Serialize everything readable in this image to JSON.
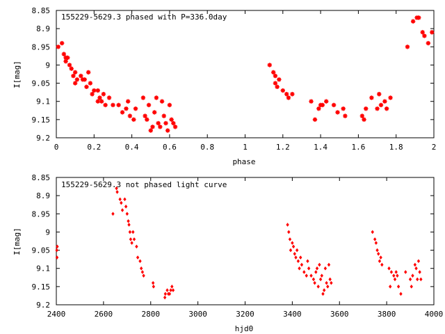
{
  "chart_data": [
    {
      "type": "scatter",
      "title": "155229-5629.3 phased with P=336.0day",
      "xlabel": "phase",
      "ylabel": "I[mag]",
      "xlim": [
        0,
        2
      ],
      "ylim": [
        9.2,
        8.85
      ],
      "y_inverted": true,
      "grid": false,
      "x_ticks": [
        "0",
        "0.2",
        "0.4",
        "0.6",
        "0.8",
        "1",
        "1.2",
        "1.4",
        "1.6",
        "1.8",
        "2"
      ],
      "x_tick_values": [
        0,
        0.2,
        0.4,
        0.6,
        0.8,
        1,
        1.2,
        1.4,
        1.6,
        1.8,
        2
      ],
      "y_ticks": [
        "8.85",
        "8.9",
        "8.95",
        "9",
        "9.05",
        "9.1",
        "9.15",
        "9.2"
      ],
      "y_tick_values": [
        8.85,
        8.9,
        8.95,
        9.0,
        9.05,
        9.1,
        9.15,
        9.2
      ],
      "marker": "star",
      "color": "#ff0000",
      "points": [
        [
          0.01,
          8.95
        ],
        [
          0.03,
          8.94
        ],
        [
          0.04,
          8.97
        ],
        [
          0.05,
          8.98
        ],
        [
          0.06,
          8.98
        ],
        [
          0.05,
          8.99
        ],
        [
          0.07,
          9.0
        ],
        [
          0.08,
          9.01
        ],
        [
          0.09,
          9.03
        ],
        [
          0.1,
          9.02
        ],
        [
          0.11,
          9.04
        ],
        [
          0.1,
          9.05
        ],
        [
          0.13,
          9.03
        ],
        [
          0.14,
          9.04
        ],
        [
          0.15,
          9.04
        ],
        [
          0.16,
          9.06
        ],
        [
          0.17,
          9.02
        ],
        [
          0.18,
          9.05
        ],
        [
          0.19,
          9.08
        ],
        [
          0.2,
          9.07
        ],
        [
          0.22,
          9.07
        ],
        [
          0.23,
          9.09
        ],
        [
          0.24,
          9.1
        ],
        [
          0.22,
          9.1
        ],
        [
          0.25,
          9.08
        ],
        [
          0.26,
          9.11
        ],
        [
          0.28,
          9.09
        ],
        [
          0.3,
          9.11
        ],
        [
          0.33,
          9.11
        ],
        [
          0.35,
          9.13
        ],
        [
          0.37,
          9.12
        ],
        [
          0.38,
          9.1
        ],
        [
          0.39,
          9.14
        ],
        [
          0.41,
          9.15
        ],
        [
          0.42,
          9.12
        ],
        [
          0.46,
          9.09
        ],
        [
          0.47,
          9.14
        ],
        [
          0.48,
          9.15
        ],
        [
          0.49,
          9.11
        ],
        [
          0.5,
          9.18
        ],
        [
          0.51,
          9.17
        ],
        [
          0.52,
          9.13
        ],
        [
          0.53,
          9.09
        ],
        [
          0.54,
          9.16
        ],
        [
          0.55,
          9.17
        ],
        [
          0.56,
          9.1
        ],
        [
          0.57,
          9.14
        ],
        [
          0.58,
          9.16
        ],
        [
          0.59,
          9.18
        ],
        [
          0.6,
          9.11
        ],
        [
          0.61,
          9.15
        ],
        [
          0.62,
          9.16
        ],
        [
          0.63,
          9.17
        ],
        [
          1.13,
          9.0
        ],
        [
          1.15,
          9.02
        ],
        [
          1.16,
          9.03
        ],
        [
          1.16,
          9.05
        ],
        [
          1.17,
          9.06
        ],
        [
          1.18,
          9.04
        ],
        [
          1.2,
          9.07
        ],
        [
          1.22,
          9.08
        ],
        [
          1.23,
          9.09
        ],
        [
          1.25,
          9.08
        ],
        [
          1.35,
          9.1
        ],
        [
          1.37,
          9.15
        ],
        [
          1.39,
          9.12
        ],
        [
          1.4,
          9.11
        ],
        [
          1.41,
          9.11
        ],
        [
          1.43,
          9.1
        ],
        [
          1.47,
          9.11
        ],
        [
          1.49,
          9.13
        ],
        [
          1.52,
          9.12
        ],
        [
          1.53,
          9.14
        ],
        [
          1.62,
          9.14
        ],
        [
          1.63,
          9.15
        ],
        [
          1.64,
          9.12
        ],
        [
          1.67,
          9.09
        ],
        [
          1.7,
          9.12
        ],
        [
          1.71,
          9.08
        ],
        [
          1.72,
          9.11
        ],
        [
          1.74,
          9.1
        ],
        [
          1.75,
          9.12
        ],
        [
          1.77,
          9.09
        ],
        [
          1.86,
          8.95
        ],
        [
          1.89,
          8.88
        ],
        [
          1.91,
          8.87
        ],
        [
          1.92,
          8.87
        ],
        [
          1.94,
          8.91
        ],
        [
          1.95,
          8.92
        ],
        [
          1.97,
          8.94
        ],
        [
          1.99,
          8.91
        ]
      ]
    },
    {
      "type": "scatter",
      "title": "155229-5629.3 not phased light curve",
      "xlabel": "hjd0",
      "ylabel": "I[mag]",
      "xlim": [
        2400,
        4000
      ],
      "ylim": [
        9.2,
        8.85
      ],
      "y_inverted": true,
      "grid": false,
      "x_ticks": [
        "2400",
        "2600",
        "2800",
        "3000",
        "3200",
        "3400",
        "3600",
        "3800",
        "4000"
      ],
      "x_tick_values": [
        2400,
        2600,
        2800,
        3000,
        3200,
        3400,
        3600,
        3800,
        4000
      ],
      "y_ticks": [
        "8.85",
        "8.9",
        "8.95",
        "9",
        "9.05",
        "9.1",
        "9.15",
        "9.2"
      ],
      "y_tick_values": [
        8.85,
        8.9,
        8.95,
        9.0,
        9.05,
        9.1,
        9.15,
        9.2
      ],
      "marker": "diamond",
      "color": "#ff0000",
      "points": [
        [
          2402,
          9.05
        ],
        [
          2403,
          9.07
        ],
        [
          2404,
          9.04
        ],
        [
          2640,
          8.95
        ],
        [
          2655,
          8.88
        ],
        [
          2658,
          8.89
        ],
        [
          2670,
          8.91
        ],
        [
          2675,
          8.92
        ],
        [
          2680,
          8.94
        ],
        [
          2690,
          8.91
        ],
        [
          2695,
          8.93
        ],
        [
          2700,
          8.95
        ],
        [
          2705,
          8.97
        ],
        [
          2708,
          8.98
        ],
        [
          2712,
          9.0
        ],
        [
          2715,
          9.02
        ],
        [
          2720,
          9.03
        ],
        [
          2725,
          9.0
        ],
        [
          2730,
          9.02
        ],
        [
          2740,
          9.04
        ],
        [
          2745,
          9.07
        ],
        [
          2755,
          9.08
        ],
        [
          2760,
          9.1
        ],
        [
          2765,
          9.11
        ],
        [
          2770,
          9.12
        ],
        [
          2810,
          9.14
        ],
        [
          2812,
          9.15
        ],
        [
          2860,
          9.18
        ],
        [
          2862,
          9.17
        ],
        [
          2870,
          9.16
        ],
        [
          2875,
          9.17
        ],
        [
          2880,
          9.17
        ],
        [
          2885,
          9.16
        ],
        [
          2890,
          9.15
        ],
        [
          2895,
          9.16
        ],
        [
          3380,
          8.98
        ],
        [
          3385,
          9.0
        ],
        [
          3390,
          9.02
        ],
        [
          3393,
          9.05
        ],
        [
          3400,
          9.03
        ],
        [
          3405,
          9.04
        ],
        [
          3410,
          9.06
        ],
        [
          3415,
          9.07
        ],
        [
          3420,
          9.05
        ],
        [
          3425,
          9.08
        ],
        [
          3430,
          9.1
        ],
        [
          3435,
          9.07
        ],
        [
          3440,
          9.09
        ],
        [
          3450,
          9.11
        ],
        [
          3460,
          9.12
        ],
        [
          3465,
          9.08
        ],
        [
          3470,
          9.1
        ],
        [
          3480,
          9.12
        ],
        [
          3490,
          9.13
        ],
        [
          3495,
          9.14
        ],
        [
          3500,
          9.11
        ],
        [
          3505,
          9.1
        ],
        [
          3510,
          9.15
        ],
        [
          3515,
          9.09
        ],
        [
          3520,
          9.13
        ],
        [
          3525,
          9.12
        ],
        [
          3530,
          9.17
        ],
        [
          3535,
          9.16
        ],
        [
          3540,
          9.1
        ],
        [
          3545,
          9.14
        ],
        [
          3550,
          9.15
        ],
        [
          3555,
          9.09
        ],
        [
          3560,
          9.13
        ],
        [
          3565,
          9.14
        ],
        [
          3740,
          9.0
        ],
        [
          3750,
          9.02
        ],
        [
          3755,
          9.03
        ],
        [
          3760,
          9.05
        ],
        [
          3765,
          9.06
        ],
        [
          3770,
          9.08
        ],
        [
          3775,
          9.07
        ],
        [
          3780,
          9.09
        ],
        [
          3810,
          9.1
        ],
        [
          3815,
          9.15
        ],
        [
          3820,
          9.11
        ],
        [
          3830,
          9.12
        ],
        [
          3835,
          9.13
        ],
        [
          3840,
          9.11
        ],
        [
          3845,
          9.12
        ],
        [
          3850,
          9.15
        ],
        [
          3860,
          9.17
        ],
        [
          3880,
          9.11
        ],
        [
          3900,
          9.13
        ],
        [
          3905,
          9.15
        ],
        [
          3910,
          9.12
        ],
        [
          3920,
          9.09
        ],
        [
          3925,
          9.1
        ],
        [
          3930,
          9.13
        ],
        [
          3935,
          9.08
        ],
        [
          3940,
          9.11
        ],
        [
          3945,
          9.13
        ]
      ]
    }
  ]
}
